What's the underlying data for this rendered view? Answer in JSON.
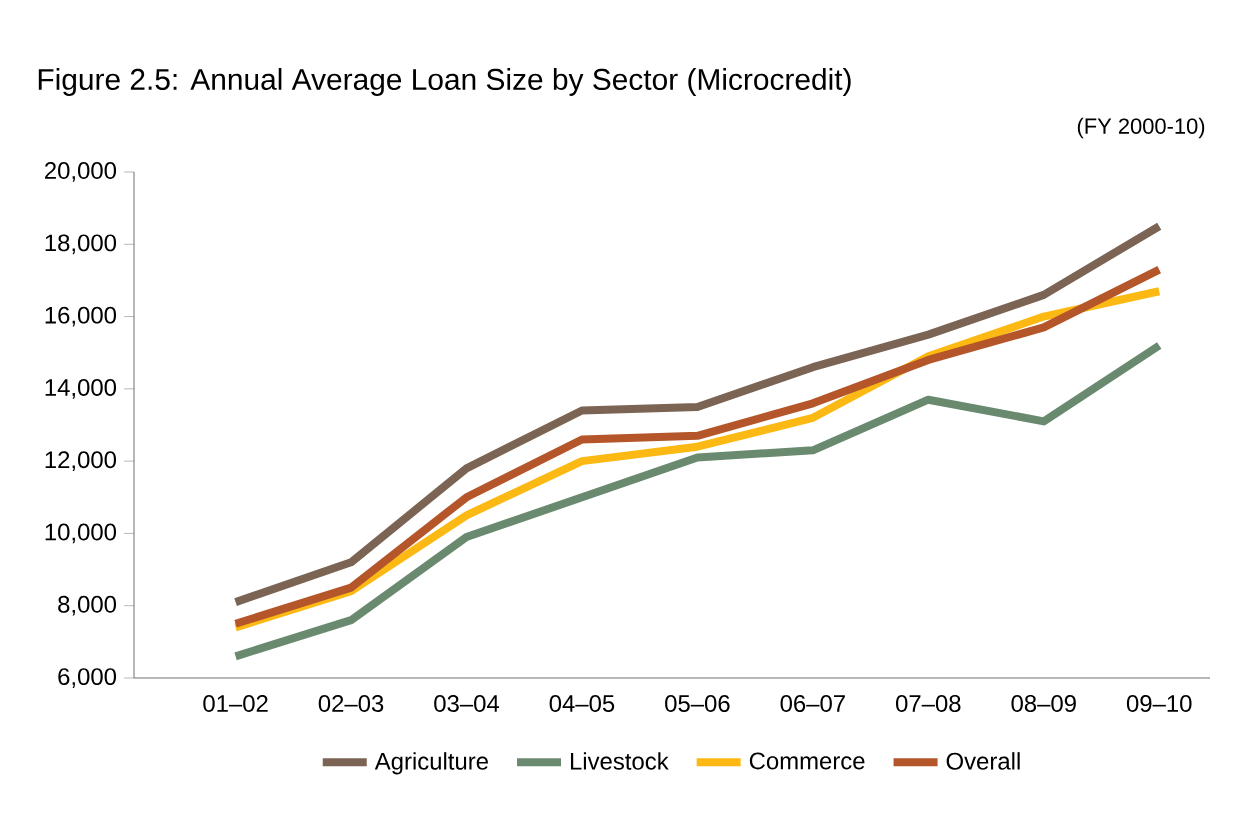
{
  "chart_data": {
    "type": "line",
    "title": "Figure 2.5: Annual Average Loan Size by Sector (Microcredit)",
    "subtitle": "(FY 2000-10)",
    "categories": [
      "01–02",
      "02–03",
      "03–04",
      "04–05",
      "05–06",
      "06–07",
      "07–08",
      "08–09",
      "09–10"
    ],
    "series": [
      {
        "name": "Agriculture",
        "color": "#7b6453",
        "values": [
          8100,
          9200,
          11800,
          13400,
          13500,
          14600,
          15500,
          16600,
          18500
        ]
      },
      {
        "name": "Livestock",
        "color": "#6a8a70",
        "values": [
          6600,
          7600,
          9900,
          11000,
          12100,
          12300,
          13700,
          13100,
          15200
        ]
      },
      {
        "name": "Commerce",
        "color": "#fdb913",
        "values": [
          7400,
          8400,
          10500,
          12000,
          12400,
          13200,
          14900,
          16000,
          16700
        ]
      },
      {
        "name": "Overall",
        "color": "#b5562a",
        "values": [
          7500,
          8500,
          11000,
          12600,
          12700,
          13600,
          14800,
          15700,
          17300
        ]
      }
    ],
    "ylim": [
      6000,
      20000
    ],
    "yticks": [
      {
        "value": 6000,
        "label": "6,000"
      },
      {
        "value": 8000,
        "label": "8,000"
      },
      {
        "value": 10000,
        "label": "10,000"
      },
      {
        "value": 12000,
        "label": "12,000"
      },
      {
        "value": 14000,
        "label": "14,000"
      },
      {
        "value": 16000,
        "label": "16,000"
      },
      {
        "value": 18000,
        "label": "18,000"
      },
      {
        "value": 20000,
        "label": "20,000"
      }
    ],
    "grid": false,
    "legend": "bottom",
    "marker": "none",
    "line_style": "solid"
  }
}
